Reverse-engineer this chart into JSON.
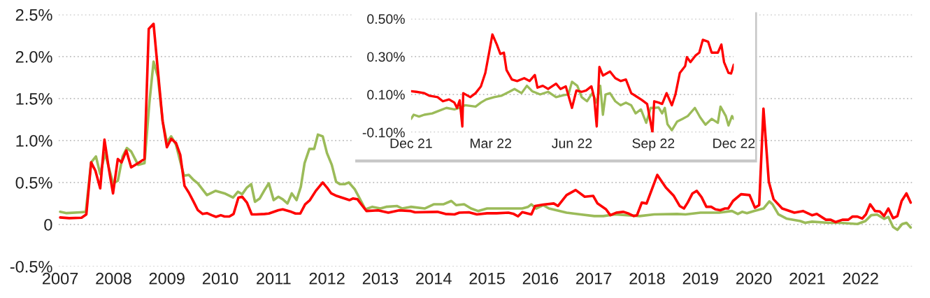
{
  "chart_data": [
    {
      "type": "line",
      "xlim": [
        2006.97,
        2022.97
      ],
      "ylim": [
        -0.5,
        2.5
      ],
      "xticks": [
        2007,
        2008,
        2009,
        2010,
        2011,
        2012,
        2013,
        2014,
        2015,
        2016,
        2017,
        2018,
        2019,
        2020,
        2021,
        2022
      ],
      "yticks": [
        {
          "value": -0.5,
          "label": "-0.5%"
        },
        0,
        {
          "value": 0.5,
          "label": "0.5%"
        },
        {
          "value": 1.0,
          "label": "1.0%"
        },
        {
          "value": 1.5,
          "label": "1.5%"
        },
        {
          "value": 2.0,
          "label": "2.0%"
        },
        {
          "value": 2.5,
          "label": "2.5%"
        }
      ],
      "grid": "y",
      "line_style": "solid",
      "marker": "none",
      "series": [
        {
          "color": "#9bbb59",
          "x": [
            2007.0,
            2007.12,
            2007.38,
            2007.48,
            2007.58,
            2007.67,
            2007.75,
            2007.84,
            2007.99,
            2008.08,
            2008.17,
            2008.25,
            2008.33,
            2008.46,
            2008.58,
            2008.67,
            2008.75,
            2008.83,
            2008.92,
            2009.0,
            2009.08,
            2009.17,
            2009.32,
            2009.41,
            2009.5,
            2009.58,
            2009.75,
            2009.91,
            2010.08,
            2010.24,
            2010.33,
            2010.41,
            2010.5,
            2010.58,
            2010.65,
            2010.74,
            2010.83,
            2010.91,
            2011.0,
            2011.09,
            2011.17,
            2011.26,
            2011.34,
            2011.43,
            2011.51,
            2011.58,
            2011.67,
            2011.76,
            2011.83,
            2011.92,
            2012.0,
            2012.09,
            2012.17,
            2012.24,
            2012.33,
            2012.41,
            2012.52,
            2012.72,
            2012.85,
            2013.0,
            2013.11,
            2013.31,
            2013.41,
            2013.57,
            2013.83,
            2014.0,
            2014.18,
            2014.33,
            2014.42,
            2014.57,
            2014.7,
            2014.83,
            2015.0,
            2015.18,
            2015.44,
            2015.66,
            2015.77,
            2015.83,
            2015.92,
            2016.05,
            2016.16,
            2016.49,
            2016.75,
            2017.01,
            2017.18,
            2017.4,
            2017.86,
            2018.13,
            2018.56,
            2018.72,
            2019.0,
            2019.35,
            2019.59,
            2019.7,
            2019.78,
            2019.87,
            2020.0,
            2020.18,
            2020.29,
            2020.35,
            2020.46,
            2020.61,
            2020.87,
            2020.96,
            2021.09,
            2021.4,
            2021.61,
            2021.94,
            2022.09,
            2022.2,
            2022.31,
            2022.44,
            2022.52,
            2022.61,
            2022.69,
            2022.78,
            2022.86,
            2022.94
          ],
          "values": [
            0.15,
            0.135,
            0.145,
            0.15,
            0.74,
            0.81,
            0.6,
            0.85,
            0.49,
            0.52,
            0.81,
            0.91,
            0.87,
            0.71,
            0.73,
            1.44,
            1.94,
            1.76,
            1.23,
            0.98,
            1.05,
            0.95,
            0.58,
            0.59,
            0.53,
            0.49,
            0.35,
            0.4,
            0.37,
            0.32,
            0.39,
            0.36,
            0.44,
            0.48,
            0.27,
            0.31,
            0.41,
            0.49,
            0.29,
            0.33,
            0.3,
            0.25,
            0.37,
            0.29,
            0.45,
            0.73,
            0.9,
            0.9,
            1.07,
            1.05,
            0.85,
            0.71,
            0.51,
            0.48,
            0.48,
            0.5,
            0.42,
            0.18,
            0.21,
            0.19,
            0.21,
            0.22,
            0.19,
            0.21,
            0.19,
            0.24,
            0.24,
            0.28,
            0.23,
            0.24,
            0.19,
            0.16,
            0.19,
            0.19,
            0.19,
            0.19,
            0.21,
            0.24,
            0.19,
            0.23,
            0.19,
            0.14,
            0.12,
            0.1,
            0.1,
            0.12,
            0.1,
            0.12,
            0.125,
            0.12,
            0.14,
            0.14,
            0.16,
            0.125,
            0.15,
            0.135,
            0.16,
            0.19,
            0.275,
            0.24,
            0.12,
            0.07,
            0.04,
            0.02,
            0.033,
            0.02,
            0.02,
            0.005,
            0.04,
            0.11,
            0.117,
            0.067,
            0.09,
            -0.03,
            -0.064,
            0.005,
            0.02,
            -0.036
          ]
        },
        {
          "color": "#ff0000",
          "x": [
            2007.0,
            2007.17,
            2007.4,
            2007.49,
            2007.58,
            2007.66,
            2007.75,
            2007.83,
            2007.91,
            2007.99,
            2008.08,
            2008.15,
            2008.24,
            2008.33,
            2008.46,
            2008.58,
            2008.66,
            2008.75,
            2008.83,
            2008.92,
            2009.0,
            2009.08,
            2009.17,
            2009.25,
            2009.33,
            2009.41,
            2009.5,
            2009.58,
            2009.67,
            2009.75,
            2009.84,
            2009.92,
            2010.01,
            2010.08,
            2010.17,
            2010.25,
            2010.34,
            2010.41,
            2010.5,
            2010.59,
            2010.67,
            2010.83,
            2010.91,
            2011.09,
            2011.17,
            2011.33,
            2011.41,
            2011.5,
            2011.59,
            2011.68,
            2011.79,
            2011.92,
            2012.0,
            2012.08,
            2012.18,
            2012.42,
            2012.49,
            2012.57,
            2012.74,
            2012.96,
            2013.15,
            2013.35,
            2013.57,
            2013.65,
            2014.07,
            2014.22,
            2014.39,
            2014.48,
            2014.66,
            2014.81,
            2015.0,
            2015.18,
            2015.4,
            2015.5,
            2015.58,
            2015.66,
            2015.83,
            2015.9,
            2016.05,
            2016.25,
            2016.33,
            2016.49,
            2016.66,
            2016.83,
            2016.99,
            2017.07,
            2017.23,
            2017.31,
            2017.42,
            2017.55,
            2017.64,
            2017.75,
            2017.81,
            2017.9,
            2017.99,
            2018.19,
            2018.35,
            2018.5,
            2018.61,
            2018.69,
            2018.76,
            2018.85,
            2018.93,
            2019.02,
            2019.11,
            2019.2,
            2019.28,
            2019.37,
            2019.46,
            2019.52,
            2019.61,
            2019.76,
            2019.92,
            2020.02,
            2020.1,
            2020.18,
            2020.28,
            2020.37,
            2020.53,
            2020.76,
            2020.92,
            2021.09,
            2021.18,
            2021.35,
            2021.44,
            2021.53,
            2021.66,
            2021.77,
            2021.85,
            2021.94,
            2022.03,
            2022.1,
            2022.18,
            2022.27,
            2022.36,
            2022.44,
            2022.52,
            2022.61,
            2022.69,
            2022.77,
            2022.86,
            2022.94
          ],
          "values": [
            0.083,
            0.075,
            0.08,
            0.12,
            0.74,
            0.64,
            0.43,
            1.01,
            0.67,
            0.37,
            0.78,
            0.74,
            0.88,
            0.68,
            0.73,
            0.78,
            2.33,
            2.39,
            1.84,
            1.23,
            0.92,
            1.02,
            0.97,
            0.83,
            0.46,
            0.38,
            0.27,
            0.17,
            0.125,
            0.135,
            0.11,
            0.09,
            0.11,
            0.095,
            0.095,
            0.125,
            0.32,
            0.33,
            0.26,
            0.12,
            0.12,
            0.125,
            0.13,
            0.17,
            0.18,
            0.15,
            0.13,
            0.13,
            0.24,
            0.29,
            0.4,
            0.5,
            0.44,
            0.37,
            0.34,
            0.29,
            0.31,
            0.3,
            0.16,
            0.167,
            0.14,
            0.167,
            0.16,
            0.145,
            0.15,
            0.125,
            0.12,
            0.14,
            0.145,
            0.12,
            0.133,
            0.133,
            0.14,
            0.125,
            0.097,
            0.147,
            0.12,
            0.22,
            0.236,
            0.25,
            0.22,
            0.35,
            0.41,
            0.33,
            0.34,
            0.25,
            0.18,
            0.11,
            0.14,
            0.15,
            0.133,
            0.1,
            0.11,
            0.26,
            0.25,
            0.59,
            0.44,
            0.34,
            0.22,
            0.19,
            0.26,
            0.37,
            0.4,
            0.325,
            0.21,
            0.21,
            0.18,
            0.17,
            0.19,
            0.19,
            0.28,
            0.36,
            0.35,
            0.2,
            0.23,
            1.38,
            0.51,
            0.3,
            0.19,
            0.14,
            0.16,
            0.11,
            0.125,
            0.056,
            0.056,
            0.028,
            0.056,
            0.056,
            0.094,
            0.094,
            0.07,
            0.12,
            0.24,
            0.16,
            0.155,
            0.1,
            0.19,
            0.075,
            0.1,
            0.28,
            0.37,
            0.26
          ]
        }
      ]
    },
    {
      "type": "line",
      "xlim": [
        "2021-12-01",
        "2022-12-01"
      ],
      "ylim": [
        -0.1,
        0.5
      ],
      "xticks": [
        {
          "value": "2021-12-01",
          "label": "Dec 21"
        },
        {
          "value": "2022-03-01",
          "label": "Mar 22"
        },
        {
          "value": "2022-06-01",
          "label": "Jun 22"
        },
        {
          "value": "2022-09-01",
          "label": "Sep 22"
        },
        {
          "value": "2022-12-01",
          "label": "Dec 22"
        }
      ],
      "yticks": [
        {
          "value": -0.1,
          "label": "-0.10%"
        },
        {
          "value": 0.1,
          "label": "0.10%"
        },
        {
          "value": 0.3,
          "label": "0.30%"
        },
        {
          "value": 0.5,
          "label": "0.50%"
        }
      ],
      "grid": "y",
      "line_style": "solid",
      "marker": "none",
      "series": [
        {
          "color": "#9bbb59",
          "x": [
            "2021-12-01",
            "2021-12-04",
            "2021-12-10",
            "2021-12-16",
            "2021-12-25",
            "2021-12-31",
            "2022-01-10",
            "2022-01-19",
            "2022-01-25",
            "2022-01-31",
            "2022-02-12",
            "2022-02-18",
            "2022-02-24",
            "2022-03-05",
            "2022-03-13",
            "2022-03-22",
            "2022-03-28",
            "2022-04-05",
            "2022-04-11",
            "2022-04-17",
            "2022-04-26",
            "2022-05-05",
            "2022-05-14",
            "2022-05-23",
            "2022-05-28",
            "2022-06-01",
            "2022-06-07",
            "2022-06-12",
            "2022-06-18",
            "2022-06-24",
            "2022-06-29",
            "2022-07-03",
            "2022-07-06",
            "2022-07-09",
            "2022-07-14",
            "2022-07-20",
            "2022-07-26",
            "2022-08-01",
            "2022-08-07",
            "2022-08-12",
            "2022-08-18",
            "2022-08-24",
            "2022-08-29",
            "2022-09-02",
            "2022-09-07",
            "2022-09-11",
            "2022-09-14",
            "2022-09-17",
            "2022-09-22",
            "2022-09-28",
            "2022-10-04",
            "2022-10-10",
            "2022-10-18",
            "2022-10-24",
            "2022-10-30",
            "2022-11-06",
            "2022-11-13",
            "2022-11-16",
            "2022-11-22",
            "2022-11-25",
            "2022-11-29",
            "2022-12-01"
          ],
          "values": [
            -0.029,
            -0.007,
            -0.017,
            -0.007,
            0.0,
            0.011,
            0.029,
            0.021,
            0.029,
            0.043,
            0.036,
            0.057,
            0.074,
            0.086,
            0.093,
            0.114,
            0.129,
            0.107,
            0.146,
            0.117,
            0.1,
            0.114,
            0.086,
            0.097,
            0.1,
            0.167,
            0.146,
            0.086,
            0.064,
            0.107,
            0.057,
            0.146,
            -0.007,
            0.1,
            0.107,
            0.064,
            0.043,
            0.057,
            0.043,
            0.0,
            0.021,
            -0.05,
            0.029,
            0.029,
            0.031,
            0.0,
            0.029,
            -0.057,
            -0.089,
            -0.043,
            -0.029,
            -0.014,
            0.029,
            -0.021,
            -0.06,
            -0.029,
            -0.05,
            0.036,
            -0.014,
            -0.064,
            -0.014,
            -0.029
          ]
        },
        {
          "color": "#ff0000",
          "x": [
            "2021-12-01",
            "2021-12-07",
            "2021-12-16",
            "2021-12-22",
            "2021-12-31",
            "2022-01-06",
            "2022-01-13",
            "2022-01-19",
            "2022-01-22",
            "2022-01-25",
            "2022-01-28",
            "2022-01-29",
            "2022-02-06",
            "2022-02-12",
            "2022-02-18",
            "2022-02-23",
            "2022-02-27",
            "2022-03-03",
            "2022-03-08",
            "2022-03-12",
            "2022-03-16",
            "2022-03-19",
            "2022-03-25",
            "2022-03-31",
            "2022-04-08",
            "2022-04-14",
            "2022-04-20",
            "2022-04-23",
            "2022-04-29",
            "2022-05-05",
            "2022-05-14",
            "2022-05-19",
            "2022-05-25",
            "2022-06-01",
            "2022-06-06",
            "2022-06-12",
            "2022-06-17",
            "2022-06-23",
            "2022-06-26",
            "2022-06-29",
            "2022-07-02",
            "2022-07-06",
            "2022-07-14",
            "2022-07-20",
            "2022-07-26",
            "2022-08-01",
            "2022-08-07",
            "2022-08-13",
            "2022-08-19",
            "2022-08-25",
            "2022-08-31",
            "2022-09-02",
            "2022-09-07",
            "2022-09-11",
            "2022-09-16",
            "2022-09-22",
            "2022-09-26",
            "2022-10-01",
            "2022-10-07",
            "2022-10-09",
            "2022-10-13",
            "2022-10-19",
            "2022-10-23",
            "2022-10-27",
            "2022-11-02",
            "2022-11-06",
            "2022-11-13",
            "2022-11-17",
            "2022-11-20",
            "2022-11-25",
            "2022-11-28",
            "2022-12-01"
          ],
          "values": [
            0.117,
            0.114,
            0.107,
            0.093,
            0.086,
            0.064,
            0.074,
            0.057,
            0.029,
            0.069,
            -0.069,
            0.107,
            0.086,
            0.107,
            0.143,
            0.214,
            0.314,
            0.417,
            0.364,
            0.314,
            0.321,
            0.229,
            0.179,
            0.171,
            0.186,
            0.171,
            0.203,
            0.136,
            0.146,
            0.129,
            0.157,
            0.129,
            0.143,
            0.029,
            0.121,
            0.114,
            0.121,
            0.143,
            0.086,
            -0.069,
            0.246,
            0.2,
            0.221,
            0.186,
            0.171,
            0.179,
            0.107,
            0.089,
            0.071,
            0.05,
            -0.1,
            0.064,
            0.057,
            0.05,
            0.107,
            0.043,
            0.1,
            0.214,
            0.25,
            0.297,
            0.271,
            0.307,
            0.321,
            0.389,
            0.379,
            0.321,
            0.321,
            0.364,
            0.271,
            0.214,
            0.211,
            0.257
          ]
        }
      ]
    }
  ]
}
